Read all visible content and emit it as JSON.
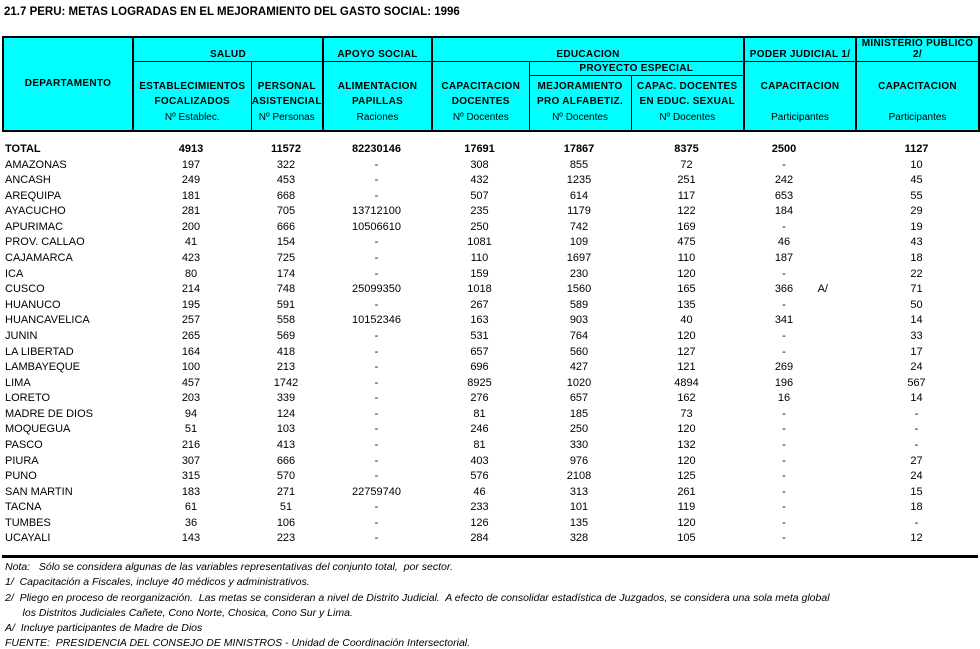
{
  "title": "21.7 PERU: METAS LOGRADAS EN EL MEJORAMIENTO DEL GASTO SOCIAL: 1996",
  "colors": {
    "header_bg": "#00ffff",
    "border": "#000000",
    "text": "#000000"
  },
  "header": {
    "departamento": "DEPARTAMENTO",
    "groups": {
      "salud": "SALUD",
      "apoyo_social": "APOYO SOCIAL",
      "educacion": "EDUCACION",
      "proyecto_especial": "PROYECTO ESPECIAL",
      "poder_judicial": "PODER JUDICIAL 1/",
      "ministerio_publico": "MINISTERIO PUBLICO 2/"
    },
    "columns": [
      {
        "l1": "ESTABLECIMIENTOS",
        "l2": "FOCALIZADOS",
        "unit": "Nº Establec."
      },
      {
        "l1": "PERSONAL",
        "l2": "ASISTENCIAL",
        "unit": "Nº Personas"
      },
      {
        "l1": "ALIMENTACION",
        "l2": "PAPILLAS",
        "unit": "Raciones"
      },
      {
        "l1": "CAPACITACION",
        "l2": "DOCENTES",
        "unit": "Nº Docentes"
      },
      {
        "l1": "MEJORAMIENTO",
        "l2": "PRO ALFABETIZ.",
        "unit": "Nº Docentes"
      },
      {
        "l1": "CAPAC. DOCENTES",
        "l2": "EN EDUC. SEXUAL",
        "unit": "Nº Docentes"
      },
      {
        "l1": "CAPACITACION",
        "l2": "",
        "unit": "Participantes"
      },
      {
        "l1": "CAPACITACION",
        "l2": "",
        "unit": "Participantes"
      }
    ]
  },
  "table": {
    "rows": [
      {
        "name": "TOTAL",
        "bold": true,
        "v": [
          "4913",
          "11572",
          "82230146",
          "17691",
          "17867",
          "8375",
          "2500",
          "1127"
        ],
        "suffix": ""
      },
      {
        "name": "AMAZONAS",
        "bold": false,
        "v": [
          "197",
          "322",
          "-",
          "308",
          "855",
          "72",
          "-",
          "10"
        ],
        "suffix": ""
      },
      {
        "name": "ANCASH",
        "bold": false,
        "v": [
          "249",
          "453",
          "-",
          "432",
          "1235",
          "251",
          "242",
          "45"
        ],
        "suffix": ""
      },
      {
        "name": "AREQUIPA",
        "bold": false,
        "v": [
          "181",
          "668",
          "-",
          "507",
          "614",
          "117",
          "653",
          "55"
        ],
        "suffix": ""
      },
      {
        "name": "AYACUCHO",
        "bold": false,
        "v": [
          "281",
          "705",
          "13712100",
          "235",
          "1179",
          "122",
          "184",
          "29"
        ],
        "suffix": ""
      },
      {
        "name": "APURIMAC",
        "bold": false,
        "v": [
          "200",
          "666",
          "10506610",
          "250",
          "742",
          "169",
          "-",
          "19"
        ],
        "suffix": ""
      },
      {
        "name": "PROV. CALLAO",
        "bold": false,
        "v": [
          "41",
          "154",
          "-",
          "1081",
          "109",
          "475",
          "46",
          "43"
        ],
        "suffix": ""
      },
      {
        "name": "CAJAMARCA",
        "bold": false,
        "v": [
          "423",
          "725",
          "-",
          "110",
          "1697",
          "110",
          "187",
          "18"
        ],
        "suffix": ""
      },
      {
        "name": "ICA",
        "bold": false,
        "v": [
          "80",
          "174",
          "-",
          "159",
          "230",
          "120",
          "-",
          "22"
        ],
        "suffix": ""
      },
      {
        "name": "CUSCO",
        "bold": false,
        "v": [
          "214",
          "748",
          "25099350",
          "1018",
          "1560",
          "165",
          "366",
          "71"
        ],
        "suffix": "A/"
      },
      {
        "name": "HUANUCO",
        "bold": false,
        "v": [
          "195",
          "591",
          "-",
          "267",
          "589",
          "135",
          "-",
          "50"
        ],
        "suffix": ""
      },
      {
        "name": "HUANCAVELICA",
        "bold": false,
        "v": [
          "257",
          "558",
          "10152346",
          "163",
          "903",
          "40",
          "341",
          "14"
        ],
        "suffix": ""
      },
      {
        "name": "JUNIN",
        "bold": false,
        "v": [
          "265",
          "569",
          "-",
          "531",
          "764",
          "120",
          "-",
          "33"
        ],
        "suffix": ""
      },
      {
        "name": "LA LIBERTAD",
        "bold": false,
        "v": [
          "164",
          "418",
          "-",
          "657",
          "560",
          "127",
          "-",
          "17"
        ],
        "suffix": ""
      },
      {
        "name": "LAMBAYEQUE",
        "bold": false,
        "v": [
          "100",
          "213",
          "-",
          "696",
          "427",
          "121",
          "269",
          "24"
        ],
        "suffix": ""
      },
      {
        "name": "LIMA",
        "bold": false,
        "v": [
          "457",
          "1742",
          "-",
          "8925",
          "1020",
          "4894",
          "196",
          "567"
        ],
        "suffix": ""
      },
      {
        "name": "LORETO",
        "bold": false,
        "v": [
          "203",
          "339",
          "-",
          "276",
          "657",
          "162",
          "16",
          "14"
        ],
        "suffix": ""
      },
      {
        "name": "MADRE DE DIOS",
        "bold": false,
        "v": [
          "94",
          "124",
          "-",
          "81",
          "185",
          "73",
          "-",
          "-"
        ],
        "suffix": ""
      },
      {
        "name": "MOQUEGUA",
        "bold": false,
        "v": [
          "51",
          "103",
          "-",
          "246",
          "250",
          "120",
          "-",
          "-"
        ],
        "suffix": ""
      },
      {
        "name": "PASCO",
        "bold": false,
        "v": [
          "216",
          "413",
          "-",
          "81",
          "330",
          "132",
          "-",
          "-"
        ],
        "suffix": ""
      },
      {
        "name": "PIURA",
        "bold": false,
        "v": [
          "307",
          "666",
          "-",
          "403",
          "976",
          "120",
          "-",
          "27"
        ],
        "suffix": ""
      },
      {
        "name": "PUNO",
        "bold": false,
        "v": [
          "315",
          "570",
          "-",
          "576",
          "2108",
          "125",
          "-",
          "24"
        ],
        "suffix": ""
      },
      {
        "name": "SAN MARTIN",
        "bold": false,
        "v": [
          "183",
          "271",
          "22759740",
          "46",
          "313",
          "261",
          "-",
          "15"
        ],
        "suffix": ""
      },
      {
        "name": "TACNA",
        "bold": false,
        "v": [
          "61",
          "51",
          "-",
          "233",
          "101",
          "119",
          "-",
          "18"
        ],
        "suffix": ""
      },
      {
        "name": "TUMBES",
        "bold": false,
        "v": [
          "36",
          "106",
          "-",
          "126",
          "135",
          "120",
          "-",
          "-"
        ],
        "suffix": ""
      },
      {
        "name": "UCAYALI",
        "bold": false,
        "v": [
          "143",
          "223",
          "-",
          "284",
          "328",
          "105",
          "-",
          "12"
        ],
        "suffix": ""
      }
    ]
  },
  "footnotes": [
    "Nota:   Sólo se considera algunas de las variables representativas del conjunto total,  por sector.",
    "1/  Capacitación a Fiscales, incluye 40 médicos y administrativos.",
    "2/  Pliego en proceso de reorganización.  Las metas se consideran a nivel de Distrito Judicial.  A efecto de consolidar estadística de Juzgados, se considera una sola meta global",
    "      los Distritos Judiciales Cañete, Cono Norte, Chosica, Cono Sur y Lima.",
    "A/  Incluye participantes de Madre de Dios",
    "FUENTE:  PRESIDENCIA DEL CONSEJO DE MINISTROS - Unidad de Coordinación Intersectorial."
  ]
}
